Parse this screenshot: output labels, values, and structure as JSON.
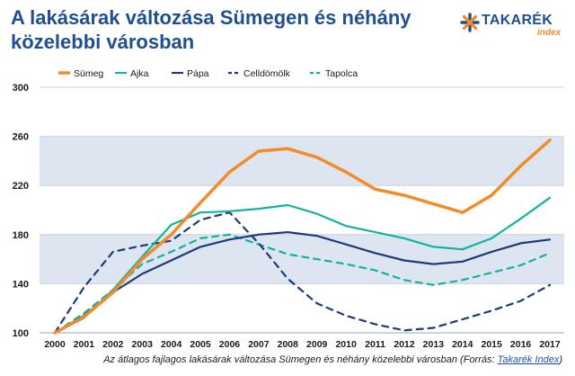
{
  "title": "A lakásárak változása Sümegen és néhány közelebbi városban",
  "logo": {
    "word": "TAKARÉK",
    "sub": "index"
  },
  "caption": {
    "text": "Az átlagos fajlagos lakásárak változása Sümegen és néhány közelebbi városban (Forrás: ",
    "link": "Takarék Index",
    "end": ")"
  },
  "chart_data": {
    "type": "line",
    "x": [
      "2000",
      "2001",
      "2002",
      "2003",
      "2004",
      "2005",
      "2006",
      "2007",
      "2008",
      "2009",
      "2010",
      "2011",
      "2012",
      "2013",
      "2014",
      "2015",
      "2016",
      "2017"
    ],
    "ylim": [
      100,
      300
    ],
    "yticks": [
      100,
      140,
      180,
      220,
      260,
      300
    ],
    "grid": true,
    "legend_position": "top",
    "series": [
      {
        "name": "Sümeg",
        "color": "#f28c28",
        "dash": "solid",
        "width": 3.5,
        "values": [
          100,
          113,
          133,
          160,
          180,
          206,
          231,
          248,
          250,
          243,
          231,
          217,
          212,
          205,
          198,
          212,
          236,
          257
        ]
      },
      {
        "name": "Ajka",
        "color": "#14b3a0",
        "dash": "solid",
        "width": 2.2,
        "values": [
          100,
          112,
          135,
          162,
          188,
          198,
          199,
          201,
          204,
          197,
          187,
          182,
          177,
          170,
          168,
          177,
          193,
          210
        ]
      },
      {
        "name": "Pápa",
        "color": "#1f3a7a",
        "dash": "solid",
        "width": 2.2,
        "values": [
          100,
          114,
          133,
          148,
          159,
          170,
          176,
          180,
          182,
          179,
          172,
          165,
          159,
          156,
          158,
          166,
          173,
          176
        ]
      },
      {
        "name": "Celldömölk",
        "color": "#1f3a7a",
        "dash": "dashed",
        "width": 2.2,
        "values": [
          100,
          137,
          166,
          171,
          175,
          192,
          198,
          173,
          144,
          124,
          114,
          107,
          102,
          104,
          111,
          118,
          126,
          139
        ]
      },
      {
        "name": "Tapolca",
        "color": "#14b3a0",
        "dash": "dashed",
        "width": 2.2,
        "values": [
          100,
          116,
          135,
          156,
          166,
          177,
          180,
          172,
          164,
          160,
          156,
          151,
          143,
          139,
          143,
          149,
          155,
          165
        ]
      }
    ]
  }
}
